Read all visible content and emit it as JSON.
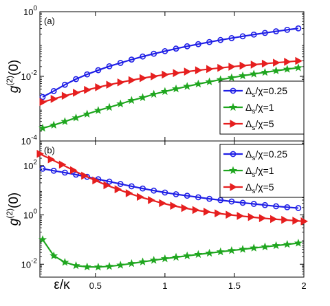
{
  "chart_data": [
    {
      "type": "line",
      "panel_label": "(a)",
      "ylabel_main": "g",
      "ylabel_sup": "(2)",
      "ylabel_tail": "(0)",
      "yscale": "log",
      "ylim": [
        0.0001,
        1
      ],
      "xlim": [
        0.1,
        2
      ],
      "x_ticks": [
        0.5,
        1,
        1.5,
        2
      ],
      "y_ticks": [
        {
          "base": "10",
          "exp": "0"
        },
        {
          "base": "10",
          "exp": "-2"
        },
        {
          "base": "10",
          "exp": "-4"
        }
      ],
      "legend_position": "lower-right",
      "x": [
        0.12,
        0.2,
        0.28,
        0.36,
        0.44,
        0.52,
        0.6,
        0.68,
        0.76,
        0.84,
        0.92,
        1.0,
        1.08,
        1.16,
        1.24,
        1.32,
        1.4,
        1.48,
        1.56,
        1.64,
        1.72,
        1.8,
        1.88,
        1.96
      ],
      "series": [
        {
          "name_main": "Δ",
          "name_sub": "s",
          "name_tail": "/χ=0.25",
          "color": "#1f1fe6",
          "marker": "circle",
          "values": [
            0.0023,
            0.0035,
            0.0055,
            0.0082,
            0.0115,
            0.0155,
            0.0205,
            0.026,
            0.033,
            0.041,
            0.05,
            0.06,
            0.072,
            0.085,
            0.099,
            0.115,
            0.133,
            0.152,
            0.173,
            0.196,
            0.22,
            0.247,
            0.275,
            0.305
          ]
        },
        {
          "name_main": "Δ",
          "name_sub": "s",
          "name_tail": "/χ=1",
          "color": "#1fa61f",
          "marker": "star",
          "values": [
            0.00025,
            0.00031,
            0.0004,
            0.00052,
            0.00068,
            0.00088,
            0.0011,
            0.0014,
            0.0018,
            0.0022,
            0.0028,
            0.0034,
            0.0041,
            0.0049,
            0.0058,
            0.0068,
            0.0079,
            0.0091,
            0.0104,
            0.0118,
            0.0133,
            0.0149,
            0.0166,
            0.0185
          ]
        },
        {
          "name_main": "Δ",
          "name_sub": "s",
          "name_tail": "/χ=5",
          "color": "#e61f1f",
          "marker": "triangle",
          "values": [
            0.0016,
            0.002,
            0.0025,
            0.0031,
            0.0038,
            0.0046,
            0.0055,
            0.0065,
            0.0076,
            0.0088,
            0.01,
            0.0113,
            0.0126,
            0.014,
            0.0154,
            0.0168,
            0.0183,
            0.0198,
            0.0214,
            0.023,
            0.0247,
            0.0264,
            0.0281,
            0.03
          ]
        }
      ]
    },
    {
      "type": "line",
      "panel_label": "(b)",
      "ylabel_main": "g",
      "ylabel_sup": "(2)",
      "ylabel_tail": "(0)",
      "yscale": "log",
      "ylim": [
        0.003,
        1000
      ],
      "xlim": [
        0.1,
        2
      ],
      "x_ticks": [
        0.5,
        1,
        1.5,
        2
      ],
      "y_ticks": [
        {
          "base": "10",
          "exp": "2"
        },
        {
          "base": "10",
          "exp": "0"
        },
        {
          "base": "10",
          "exp": "-2"
        }
      ],
      "xlabel": "ε/κ",
      "legend_position": "top-right",
      "series": [
        {
          "name_main": "Δ",
          "name_sub": "s",
          "name_tail": "/χ=0.25",
          "color": "#1f1fe6",
          "marker": "circle",
          "x": [
            0.12,
            0.2,
            0.28,
            0.36,
            0.44,
            0.52,
            0.6,
            0.68,
            0.76,
            0.84,
            0.92,
            1.0,
            1.08,
            1.16,
            1.24,
            1.32,
            1.4,
            1.48,
            1.56,
            1.64,
            1.72,
            1.8,
            1.88,
            1.96
          ],
          "values": [
            75,
            62,
            52,
            43,
            35,
            28,
            22.5,
            18,
            14.5,
            11.8,
            9.7,
            8.1,
            6.9,
            6.0,
            5.2,
            4.5,
            4.0,
            3.5,
            3.1,
            2.8,
            2.5,
            2.25,
            2.05,
            1.9
          ]
        },
        {
          "name_main": "Δ",
          "name_sub": "s",
          "name_tail": "/χ=1",
          "color": "#1fa61f",
          "marker": "star",
          "x": [
            0.12,
            0.2,
            0.28,
            0.36,
            0.44,
            0.52,
            0.6,
            0.68,
            0.76,
            0.84,
            0.92,
            1.0,
            1.08,
            1.16,
            1.24,
            1.32,
            1.4,
            1.48,
            1.56,
            1.64,
            1.72,
            1.8,
            1.88,
            1.96
          ],
          "values": [
            0.1,
            0.022,
            0.012,
            0.0088,
            0.0078,
            0.0077,
            0.0082,
            0.0092,
            0.0107,
            0.0125,
            0.0145,
            0.0168,
            0.0193,
            0.022,
            0.025,
            0.0283,
            0.032,
            0.036,
            0.0405,
            0.0455,
            0.051,
            0.057,
            0.064,
            0.072
          ]
        },
        {
          "name_main": "Δ",
          "name_sub": "s",
          "name_tail": "/χ=5",
          "color": "#e61f1f",
          "marker": "triangle",
          "x": [
            0.1,
            0.18,
            0.26,
            0.34,
            0.42,
            0.5,
            0.58,
            0.66,
            0.74,
            0.82,
            0.9,
            0.98,
            1.06,
            1.14,
            1.22,
            1.3,
            1.38,
            1.46,
            1.54,
            1.62,
            1.7,
            1.78,
            1.86,
            1.94,
            2.0
          ],
          "values": [
            300,
            180,
            110,
            65,
            39,
            25,
            16,
            11,
            7.6,
            5.4,
            4.0,
            3.0,
            2.35,
            1.9,
            1.58,
            1.34,
            1.16,
            1.02,
            0.91,
            0.82,
            0.74,
            0.68,
            0.63,
            0.58,
            0.55
          ]
        }
      ]
    }
  ]
}
